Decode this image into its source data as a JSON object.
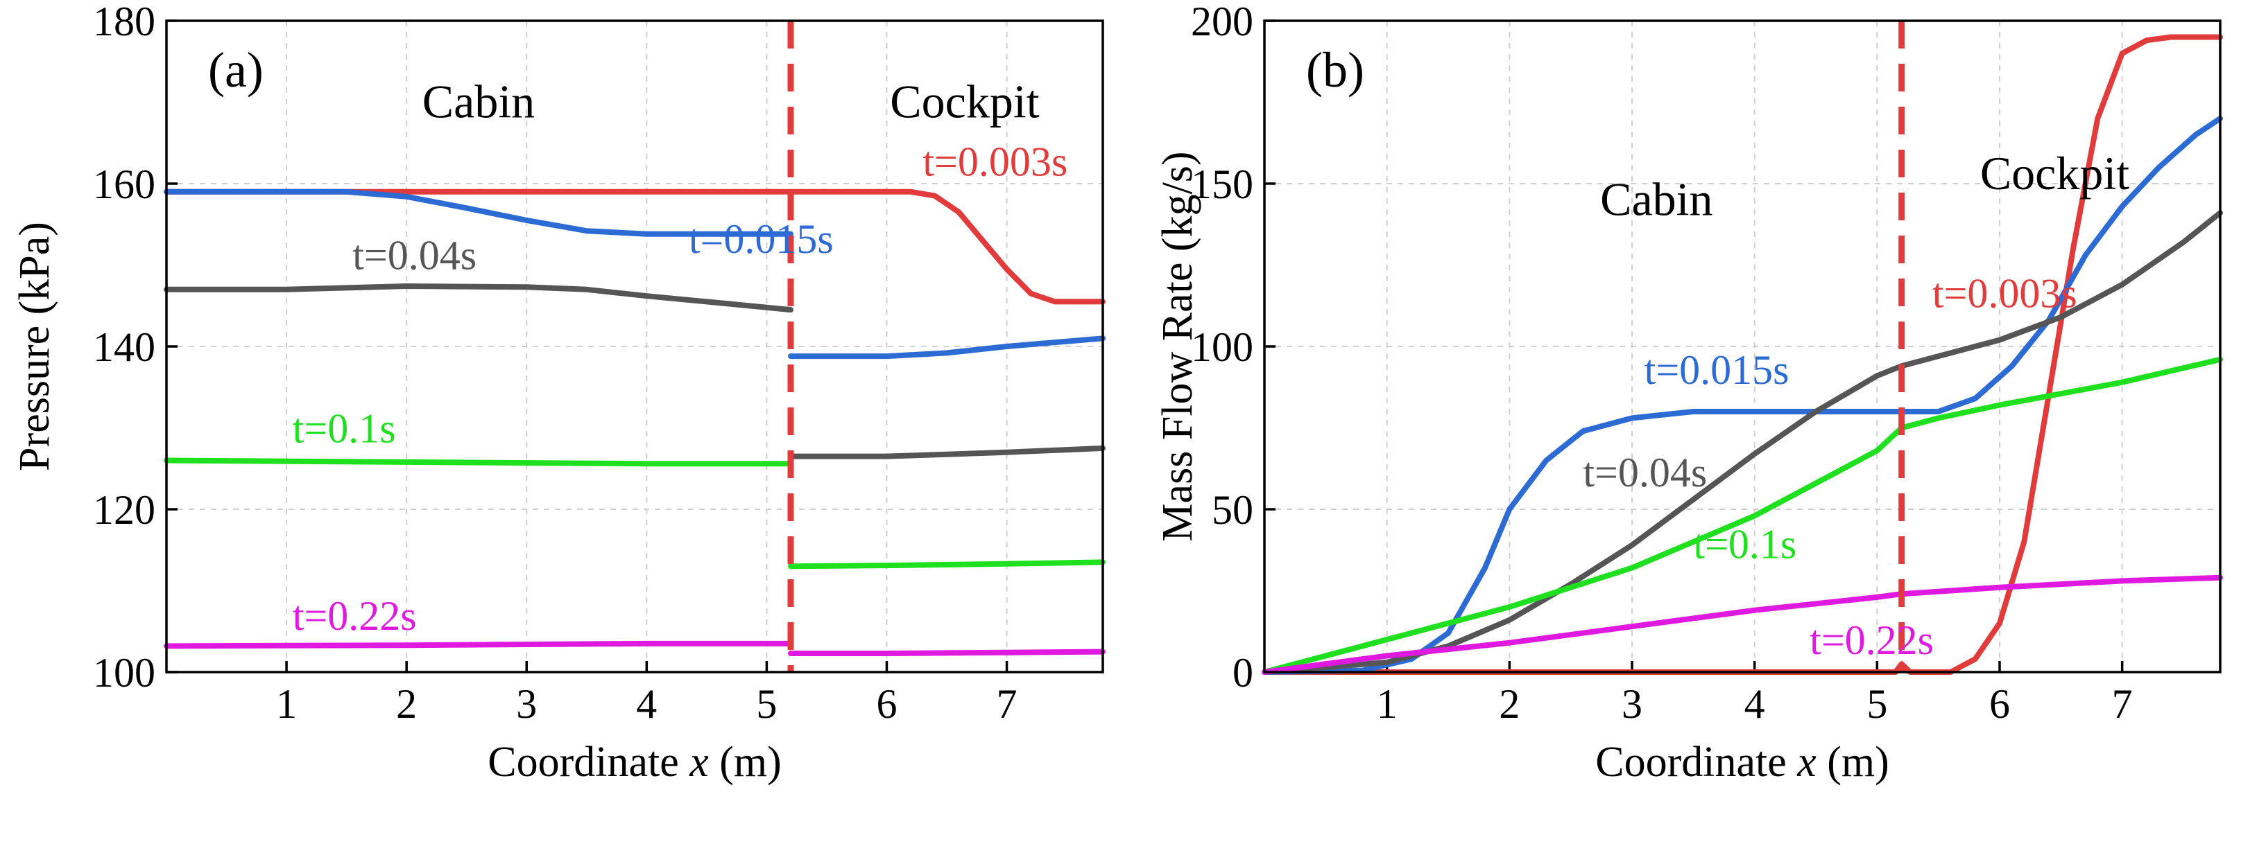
{
  "chart_data": [
    {
      "id": "a",
      "type": "line",
      "panel_label": "(a)",
      "title": "",
      "xlabel_prefix": "Coordinate ",
      "xlabel_var": "x",
      "xlabel_suffix": " (m)",
      "ylabel": "Pressure (kPa)",
      "xlim": [
        0,
        7.8
      ],
      "ylim": [
        100,
        180
      ],
      "xticks": [
        1,
        2,
        3,
        4,
        5,
        6,
        7
      ],
      "yticks": [
        100,
        120,
        140,
        160,
        180
      ],
      "grid": true,
      "divider_x": 5.2,
      "region_labels": [
        {
          "text": "Cabin",
          "x": 2.6,
          "y": 170
        },
        {
          "text": "Cockpit",
          "x": 6.65,
          "y": 170
        }
      ],
      "series": [
        {
          "name": "t=0.003s",
          "color": "#e23b3b",
          "label_at": [
            6.3,
            161
          ],
          "points": [
            [
              0,
              159
            ],
            [
              5.2,
              159
            ],
            [
              6.2,
              159
            ],
            [
              6.4,
              158.5
            ],
            [
              6.6,
              156.5
            ],
            [
              6.8,
              153
            ],
            [
              7.0,
              149.5
            ],
            [
              7.2,
              146.5
            ],
            [
              7.4,
              145.5
            ],
            [
              7.8,
              145.5
            ]
          ]
        },
        {
          "name": "t=0.015s",
          "color": "#2d6bd4",
          "label_at": [
            4.35,
            151.5
          ],
          "points": [
            [
              0,
              159
            ],
            [
              1.5,
              159
            ],
            [
              2.0,
              158.4
            ],
            [
              2.5,
              157
            ],
            [
              3.0,
              155.5
            ],
            [
              3.5,
              154.2
            ],
            [
              4.0,
              153.8
            ],
            [
              5.2,
              153.8
            ],
            null,
            [
              5.2,
              138.8
            ],
            [
              6.0,
              138.8
            ],
            [
              6.5,
              139.2
            ],
            [
              7.0,
              140
            ],
            [
              7.8,
              141
            ]
          ]
        },
        {
          "name": "t=0.04s",
          "color": "#555555",
          "label_at": [
            1.55,
            149.5
          ],
          "points": [
            [
              0,
              147
            ],
            [
              1.0,
              147
            ],
            [
              2.0,
              147.4
            ],
            [
              3.0,
              147.3
            ],
            [
              3.5,
              147
            ],
            [
              4.0,
              146.2
            ],
            [
              4.5,
              145.5
            ],
            [
              5.2,
              144.5
            ],
            null,
            [
              5.2,
              126.5
            ],
            [
              6.0,
              126.5
            ],
            [
              7.0,
              127
            ],
            [
              7.8,
              127.5
            ]
          ]
        },
        {
          "name": "t=0.1s",
          "color": "#1fe01f",
          "label_at": [
            1.05,
            128.2
          ],
          "points": [
            [
              0,
              126
            ],
            [
              2.0,
              125.8
            ],
            [
              4.0,
              125.6
            ],
            [
              5.2,
              125.6
            ],
            null,
            [
              5.2,
              113
            ],
            [
              6.0,
              113.1
            ],
            [
              7.0,
              113.3
            ],
            [
              7.8,
              113.5
            ]
          ]
        },
        {
          "name": "t=0.22s",
          "color": "#e019e0",
          "label_at": [
            1.05,
            105.2
          ],
          "points": [
            [
              0,
              103.2
            ],
            [
              2.0,
              103.3
            ],
            [
              4.0,
              103.5
            ],
            [
              5.2,
              103.5
            ],
            null,
            [
              5.2,
              102.3
            ],
            [
              6.0,
              102.3
            ],
            [
              7.0,
              102.4
            ],
            [
              7.8,
              102.5
            ]
          ]
        }
      ]
    },
    {
      "id": "b",
      "type": "line",
      "panel_label": "(b)",
      "title": "",
      "xlabel_prefix": "Coordinate ",
      "xlabel_var": "x",
      "xlabel_suffix": " (m)",
      "ylabel": "Mass Flow Rate (kg/s)",
      "xlim": [
        0,
        7.8
      ],
      "ylim": [
        0,
        200
      ],
      "xticks": [
        1,
        2,
        3,
        4,
        5,
        6,
        7
      ],
      "yticks": [
        0,
        50,
        100,
        150,
        200
      ],
      "grid": true,
      "divider_x": 5.2,
      "region_labels": [
        {
          "text": "Cabin",
          "x": 3.2,
          "y": 145
        },
        {
          "text": "Cockpit",
          "x": 6.45,
          "y": 153
        }
      ],
      "series": [
        {
          "name": "t=0.003s",
          "color": "#e23b3b",
          "label_at": [
            5.45,
            112
          ],
          "points": [
            [
              0,
              0
            ],
            [
              5.15,
              0
            ],
            [
              5.2,
              2.5
            ],
            [
              5.27,
              0
            ],
            [
              5.6,
              0
            ],
            [
              5.8,
              4
            ],
            [
              6.0,
              15
            ],
            [
              6.2,
              40
            ],
            [
              6.4,
              85
            ],
            [
              6.6,
              130
            ],
            [
              6.8,
              170
            ],
            [
              7.0,
              190
            ],
            [
              7.2,
              194
            ],
            [
              7.4,
              195
            ],
            [
              7.8,
              195
            ]
          ]
        },
        {
          "name": "t=0.015s",
          "color": "#2d6bd4",
          "label_at": [
            3.1,
            88.5
          ],
          "points": [
            [
              0,
              0
            ],
            [
              0.8,
              0.5
            ],
            [
              1.2,
              4
            ],
            [
              1.5,
              12
            ],
            [
              1.8,
              32
            ],
            [
              2.0,
              50
            ],
            [
              2.3,
              65
            ],
            [
              2.6,
              74
            ],
            [
              3.0,
              78
            ],
            [
              3.5,
              80
            ],
            [
              4.0,
              80
            ],
            [
              5.2,
              80
            ],
            [
              5.5,
              80
            ],
            [
              5.8,
              84
            ],
            [
              6.1,
              94
            ],
            [
              6.4,
              108
            ],
            [
              6.7,
              128
            ],
            [
              7.0,
              143
            ],
            [
              7.3,
              155
            ],
            [
              7.6,
              165
            ],
            [
              7.8,
              170
            ]
          ]
        },
        {
          "name": "t=0.04s",
          "color": "#555555",
          "label_at": [
            2.6,
            57
          ],
          "points": [
            [
              0,
              0
            ],
            [
              1.0,
              3
            ],
            [
              1.5,
              8
            ],
            [
              2.0,
              16
            ],
            [
              2.5,
              27
            ],
            [
              3.0,
              39
            ],
            [
              3.5,
              53
            ],
            [
              4.0,
              67
            ],
            [
              4.5,
              80
            ],
            [
              5.0,
              91
            ],
            [
              5.2,
              94
            ],
            [
              5.5,
              97
            ],
            [
              6.0,
              102
            ],
            [
              6.5,
              109
            ],
            [
              7.0,
              119
            ],
            [
              7.5,
              132
            ],
            [
              7.8,
              141
            ]
          ]
        },
        {
          "name": "t=0.1s",
          "color": "#1fe01f",
          "label_at": [
            3.5,
            35
          ],
          "points": [
            [
              0,
              0
            ],
            [
              1.0,
              10
            ],
            [
              2.0,
              20
            ],
            [
              3.0,
              32
            ],
            [
              4.0,
              48
            ],
            [
              5.0,
              68
            ],
            [
              5.2,
              75
            ],
            [
              5.5,
              78
            ],
            [
              6.0,
              82
            ],
            [
              7.0,
              89
            ],
            [
              7.8,
              96
            ]
          ]
        },
        {
          "name": "t=0.22s",
          "color": "#e019e0",
          "label_at": [
            4.45,
            5.5
          ],
          "points": [
            [
              0,
              0
            ],
            [
              1.0,
              5
            ],
            [
              2.0,
              9
            ],
            [
              3.0,
              14
            ],
            [
              4.0,
              19
            ],
            [
              5.0,
              23
            ],
            [
              5.2,
              24
            ],
            [
              6.0,
              26
            ],
            [
              7.0,
              28
            ],
            [
              7.8,
              29
            ]
          ]
        }
      ]
    }
  ]
}
